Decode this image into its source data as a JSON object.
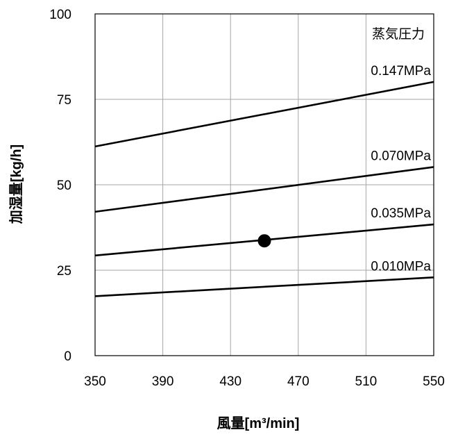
{
  "chart_data": {
    "type": "line",
    "xlabel": "風量[m³/min]",
    "ylabel": "加湿量[kg/h]",
    "legend_title": "蒸気圧力",
    "xlim": [
      350,
      550
    ],
    "ylim": [
      0,
      100
    ],
    "xticks": [
      "350",
      "390",
      "430",
      "470",
      "510",
      "550"
    ],
    "yticks": [
      "0",
      "25",
      "50",
      "75",
      "100"
    ],
    "grid": true,
    "series": [
      {
        "name": "0.147MPa",
        "x": [
          350,
          550
        ],
        "y": [
          61.2,
          80.1
        ]
      },
      {
        "name": "0.070MPa",
        "x": [
          350,
          550
        ],
        "y": [
          42.1,
          55.2
        ]
      },
      {
        "name": "0.035MPa",
        "x": [
          350,
          550
        ],
        "y": [
          29.3,
          38.4
        ]
      },
      {
        "name": "0.010MPa",
        "x": [
          350,
          550
        ],
        "y": [
          17.4,
          22.9
        ]
      }
    ],
    "markers": [
      {
        "x": 450,
        "y": 33.6
      }
    ]
  }
}
